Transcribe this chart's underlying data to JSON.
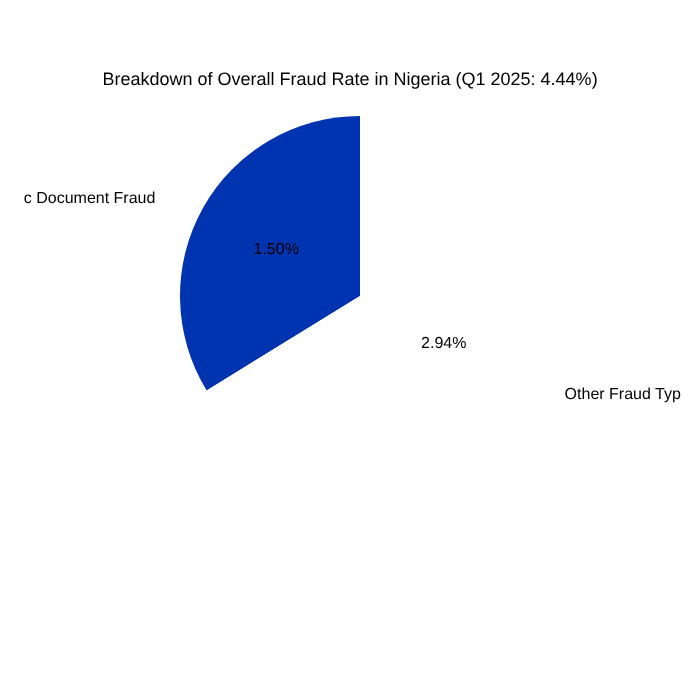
{
  "chart_data": {
    "type": "pie",
    "title": "Breakdown of Overall Fraud Rate in Nigeria (Q1 2025: 4.44%)",
    "categories": [
      "c Document Fraud",
      "Other Fraud Typ"
    ],
    "values": [
      1.5,
      2.94
    ],
    "colors": [
      "#0033b0",
      "#ffffff"
    ],
    "value_labels": [
      "1.50%",
      "2.94%"
    ],
    "legend": false
  }
}
